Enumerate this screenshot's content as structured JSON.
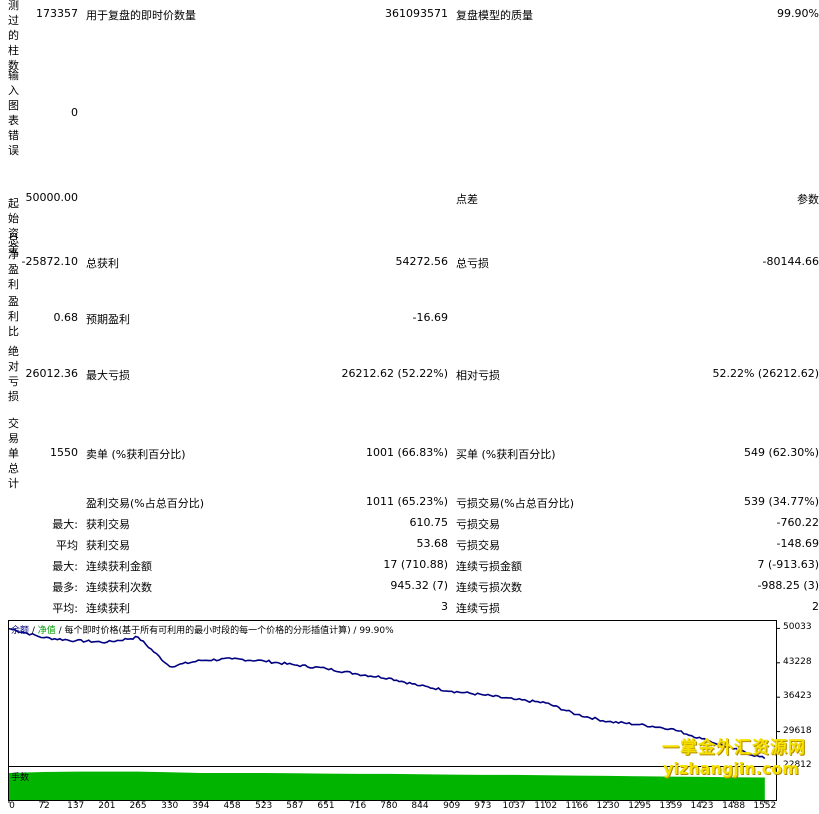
{
  "vlabels": {
    "bars": "测过的柱数",
    "input_errors": "输入图表错误",
    "initial_deposit": "起始资金",
    "net_profit": "总净盈利",
    "profit_factor": "盈利比",
    "abs_drawdown": "绝对亏损",
    "total_trades": "交易单总计"
  },
  "report": {
    "bars_value": "173357",
    "ticks_label": "用于复盘的即时价数量",
    "ticks_value": "361093571",
    "quality_label": "复盘模型的质量",
    "quality_value": "99.90%",
    "errors_value": "0",
    "deposit_value": "50000.00",
    "spread_label": "点差",
    "spread_value": "参数",
    "net_profit_value": "-25872.10",
    "gross_profit_label": "总获利",
    "gross_profit_value": "54272.56",
    "gross_loss_label": "总亏损",
    "gross_loss_value": "-80144.66",
    "profit_factor_value": "0.68",
    "expected_payoff_label": "预期盈利",
    "expected_payoff_value": "-16.69",
    "abs_dd_value": "26012.36",
    "max_dd_label": "最大亏损",
    "max_dd_value": "26212.62 (52.22%)",
    "rel_dd_label": "相对亏损",
    "rel_dd_value": "52.22% (26212.62)",
    "total_trades_value": "1550",
    "short_label": "卖单 (%获利百分比)",
    "short_value": "1001 (66.83%)",
    "long_label": "买单 (%获利百分比)",
    "long_value": "549 (62.30%)",
    "profit_trades_label": "盈利交易(%占总百分比)",
    "profit_trades_value": "1011 (65.23%)",
    "loss_trades_label": "亏损交易(%占总百分比)",
    "loss_trades_value": "539 (34.77%)",
    "largest_prefix": "最大:",
    "largest_profit_label": "获利交易",
    "largest_profit_value": "610.75",
    "largest_loss_label": "亏损交易",
    "largest_loss_value": "-760.22",
    "average_prefix": "平均",
    "avg_profit_label": "获利交易",
    "avg_profit_value": "53.68",
    "avg_loss_label": "亏损交易",
    "avg_loss_value": "-148.69",
    "max_prefix": "最大:",
    "max_consec_wins_label": "连续获利金额",
    "max_consec_wins_value": "17 (710.88)",
    "max_consec_losses_label": "连续亏损金额",
    "max_consec_losses_value": "7 (-913.63)",
    "maximal_prefix": "最多:",
    "maximal_consec_profit_label": "连续获利次数",
    "maximal_consec_profit_value": "945.32 (7)",
    "maximal_consec_loss_label": "连续亏损次数",
    "maximal_consec_loss_value": "-988.25 (3)",
    "avg2_prefix": "平均:",
    "avg_consec_wins_label": "连续获利",
    "avg_consec_wins_value": "3",
    "avg_consec_losses_label": "连续亏损",
    "avg_consec_losses_value": "2"
  },
  "chart_legend": {
    "balance": "余额",
    "sep1": " / ",
    "equity": "净值",
    "rest": " / 每个即时价格(基于所有可利用的最小时段的每一个价格的分形插值计算) / 99.90%"
  },
  "volume_label": "手数",
  "watermark": {
    "cn": "一掌金外汇资源网",
    "en": "yizhangjin.com"
  },
  "colors": {
    "balance_line": "#000080",
    "volume_fill": "#00b400",
    "watermark": "#f6e000"
  },
  "chart_data": {
    "type": "line",
    "x": [
      0,
      72,
      137,
      201,
      265,
      330,
      394,
      458,
      523,
      587,
      651,
      716,
      780,
      844,
      909,
      973,
      1037,
      1102,
      1166,
      1230,
      1295,
      1359,
      1423,
      1488,
      1552
    ],
    "xlim": [
      0,
      1575
    ],
    "ylim": [
      22812,
      51300
    ],
    "y_ticks": [
      50033,
      43228,
      36423,
      29618,
      22812
    ],
    "series": [
      {
        "name": "余额",
        "values": [
          50000,
          48200,
          47600,
          47300,
          48300,
          42500,
          43700,
          44000,
          43600,
          42800,
          42100,
          41000,
          40200,
          38700,
          37600,
          36900,
          36000,
          35300,
          33000,
          31600,
          31000,
          30200,
          28200,
          26200,
          24300
        ]
      }
    ],
    "volume": [
      0.82,
      0.85,
      0.86,
      0.86,
      0.86,
      0.84,
      0.82,
      0.82,
      0.82,
      0.81,
      0.8,
      0.79,
      0.79,
      0.78,
      0.77,
      0.76,
      0.76,
      0.75,
      0.74,
      0.73,
      0.72,
      0.71,
      0.7,
      0.69,
      0.68
    ],
    "grid": false
  }
}
